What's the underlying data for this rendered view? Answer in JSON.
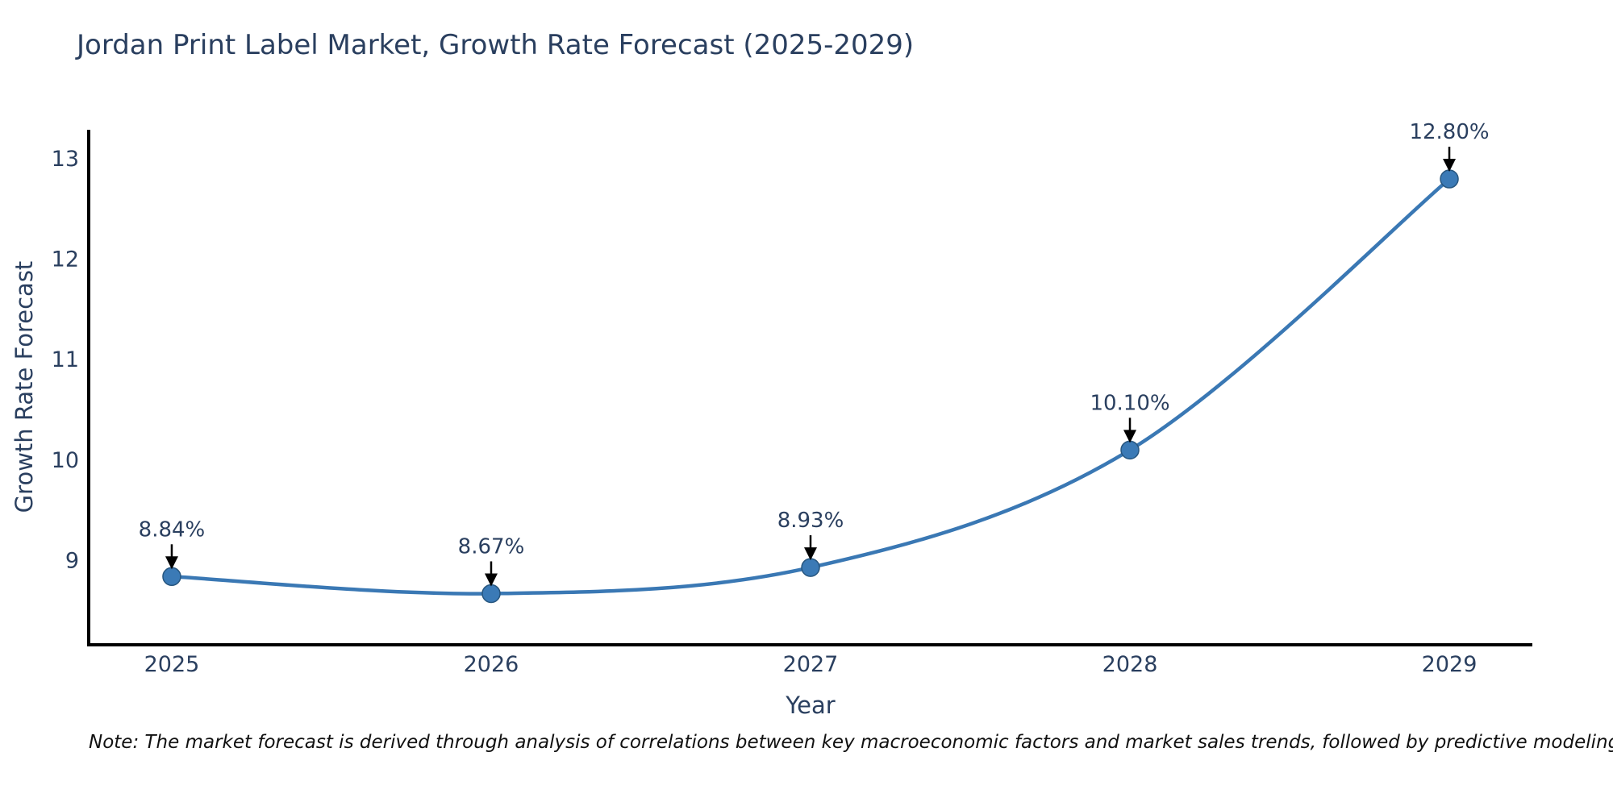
{
  "note": "Note: The market forecast is derived through analysis of correlations between key macroeconomic factors and market sales trends, followed by predictive modeling to project future sales",
  "colors": {
    "title_text": "#2a3f5f",
    "tick_text": "#2a3f5f",
    "axis_line": "#000000",
    "series_line": "#3a78b4",
    "marker_fill": "#3b7ab6",
    "marker_edge": "#27567f",
    "annotation_arrow": "#000000",
    "note_text": "#111111",
    "background": "#ffffff"
  },
  "chart_data": {
    "type": "line",
    "line_shape": "spline",
    "title": "Jordan Print Label Market, Growth Rate Forecast (2025-2029)",
    "xlabel": "Year",
    "ylabel": "Growth Rate Forecast",
    "unit": "%",
    "x": [
      2025,
      2026,
      2027,
      2028,
      2029
    ],
    "y": [
      8.84,
      8.67,
      8.93,
      10.1,
      12.8
    ],
    "point_labels": [
      "8.84%",
      "8.67%",
      "8.93%",
      "10.10%",
      "12.80%"
    ],
    "yticks": [
      9,
      10,
      11,
      12,
      13
    ],
    "xlim": [
      2024.74,
      2029.26
    ],
    "ylim": [
      8.16,
      13.29
    ],
    "grid": false,
    "legend": false
  }
}
